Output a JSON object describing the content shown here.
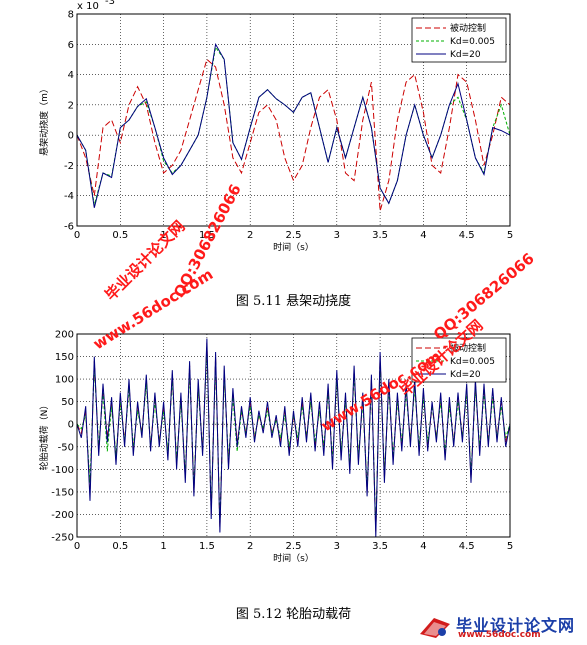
{
  "chart_data": [
    {
      "type": "line",
      "exponent_label": "x 10",
      "exponent_power": "-3",
      "xlabel": "时间（s）",
      "ylabel": "悬架动挠度（m）",
      "xlim": [
        0,
        5
      ],
      "ylim": [
        -6,
        8
      ],
      "xticks": [
        "0",
        "0.5",
        "1",
        "1.5",
        "2",
        "2.5",
        "3",
        "3.5",
        "4",
        "4.5",
        "5"
      ],
      "yticks": [
        "-6",
        "-4",
        "-2",
        "0",
        "2",
        "4",
        "6",
        "8"
      ],
      "grid": true,
      "legend_position": "top-right",
      "series": [
        {
          "name": "被动控制",
          "color": "#cc0000",
          "style": "dashed",
          "x": [
            0,
            0.1,
            0.2,
            0.3,
            0.4,
            0.5,
            0.6,
            0.7,
            0.8,
            0.9,
            1.0,
            1.1,
            1.2,
            1.3,
            1.4,
            1.5,
            1.6,
            1.7,
            1.8,
            1.9,
            2.0,
            2.1,
            2.2,
            2.3,
            2.4,
            2.5,
            2.6,
            2.7,
            2.8,
            2.9,
            3.0,
            3.1,
            3.2,
            3.3,
            3.4,
            3.5,
            3.6,
            3.7,
            3.8,
            3.9,
            4.0,
            4.1,
            4.2,
            4.3,
            4.4,
            4.5,
            4.6,
            4.7,
            4.8,
            4.9,
            5.0
          ],
          "y": [
            0,
            -1.5,
            -4.0,
            0.5,
            1.0,
            -0.5,
            2.0,
            3.2,
            2.0,
            -0.5,
            -2.5,
            -2.0,
            -1.0,
            1.0,
            3.0,
            5.0,
            4.5,
            2.0,
            -1.5,
            -2.5,
            -0.5,
            1.5,
            2.0,
            1.0,
            -1.5,
            -3.0,
            -2.0,
            0.5,
            2.5,
            3.0,
            1.0,
            -2.5,
            -3.0,
            1.0,
            3.5,
            -5.0,
            -3.0,
            1.0,
            3.5,
            4.0,
            1.5,
            -2.0,
            -2.5,
            0.5,
            4.0,
            3.5,
            1.0,
            -2.0,
            0.0,
            2.5,
            2.0
          ]
        },
        {
          "name": "Kd=0.005",
          "color": "#00b000",
          "style": "dashed",
          "x": [
            0,
            0.1,
            0.2,
            0.3,
            0.4,
            0.5,
            0.6,
            0.7,
            0.8,
            0.9,
            1.0,
            1.1,
            1.2,
            1.3,
            1.4,
            1.5,
            1.6,
            1.7,
            1.8,
            1.9,
            2.0,
            2.1,
            2.2,
            2.3,
            2.4,
            2.5,
            2.6,
            2.7,
            2.8,
            2.9,
            3.0,
            3.1,
            3.2,
            3.3,
            3.4,
            3.5,
            3.6,
            3.7,
            3.8,
            3.9,
            4.0,
            4.1,
            4.2,
            4.3,
            4.4,
            4.5,
            4.6,
            4.7,
            4.8,
            4.9,
            5.0
          ],
          "y": [
            0,
            -1.0,
            -4.6,
            -2.5,
            -2.7,
            0.5,
            1.0,
            1.9,
            2.2,
            0.5,
            -1.7,
            -2.5,
            -2.0,
            -1.0,
            0.0,
            2.5,
            5.8,
            5.0,
            -0.5,
            -1.6,
            0.5,
            2.5,
            3.0,
            2.4,
            2.0,
            1.5,
            2.5,
            2.8,
            0.5,
            -1.8,
            0.5,
            -1.5,
            0.5,
            2.5,
            0.5,
            -3.5,
            -4.5,
            -3.0,
            0.0,
            2.0,
            0.0,
            -1.5,
            0.0,
            2.0,
            2.5,
            1.0,
            -1.5,
            -2.5,
            0.5,
            2.0,
            0.0
          ]
        },
        {
          "name": "Kd=20",
          "color": "#000080",
          "style": "solid",
          "x": [
            0,
            0.1,
            0.2,
            0.3,
            0.4,
            0.5,
            0.6,
            0.7,
            0.8,
            0.9,
            1.0,
            1.1,
            1.2,
            1.3,
            1.4,
            1.5,
            1.6,
            1.7,
            1.8,
            1.9,
            2.0,
            2.1,
            2.2,
            2.3,
            2.4,
            2.5,
            2.6,
            2.7,
            2.8,
            2.9,
            3.0,
            3.1,
            3.2,
            3.3,
            3.4,
            3.5,
            3.6,
            3.7,
            3.8,
            3.9,
            4.0,
            4.1,
            4.2,
            4.3,
            4.4,
            4.5,
            4.6,
            4.7,
            4.8,
            4.9,
            5.0
          ],
          "y": [
            0,
            -1.0,
            -4.8,
            -2.5,
            -2.8,
            0.5,
            1.0,
            1.9,
            2.4,
            0.5,
            -1.5,
            -2.6,
            -2.0,
            -1.0,
            0.0,
            2.5,
            6.0,
            5.0,
            -0.5,
            -1.6,
            0.5,
            2.5,
            3.0,
            2.4,
            2.0,
            1.5,
            2.5,
            2.8,
            0.5,
            -1.8,
            0.5,
            -1.5,
            0.5,
            2.5,
            0.5,
            -3.5,
            -4.5,
            -3.0,
            0.0,
            2.0,
            0.0,
            -1.5,
            0.0,
            2.0,
            3.4,
            1.0,
            -1.5,
            -2.6,
            0.5,
            0.3,
            0.0
          ]
        }
      ]
    },
    {
      "type": "line",
      "xlabel": "时间（s）",
      "ylabel": "轮胎动载荷（N）",
      "xlim": [
        0,
        5
      ],
      "ylim": [
        -250,
        200
      ],
      "xticks": [
        "0",
        "0.5",
        "1",
        "1.5",
        "2",
        "2.5",
        "3",
        "3.5",
        "4",
        "4.5",
        "5"
      ],
      "yticks": [
        "-250",
        "-200",
        "-150",
        "-100",
        "-50",
        "0",
        "50",
        "100",
        "150",
        "200"
      ],
      "grid": true,
      "legend_position": "top-right",
      "series": [
        {
          "name": "被动控制",
          "color": "#cc0000",
          "style": "dashed",
          "x": [
            0,
            0.05,
            0.1,
            0.15,
            0.2,
            0.25,
            0.3,
            0.35,
            0.4,
            0.45,
            0.5,
            0.55,
            0.6,
            0.65,
            0.7,
            0.75,
            0.8,
            0.85,
            0.9,
            0.95,
            1.0,
            1.05,
            1.1,
            1.15,
            1.2,
            1.25,
            1.3,
            1.35,
            1.4,
            1.45,
            1.5,
            1.55,
            1.6,
            1.65,
            1.7,
            1.75,
            1.8,
            1.85,
            1.9,
            1.95,
            2.0,
            2.05,
            2.1,
            2.15,
            2.2,
            2.25,
            2.3,
            2.35,
            2.4,
            2.45,
            2.5,
            2.55,
            2.6,
            2.65,
            2.7,
            2.75,
            2.8,
            2.85,
            2.9,
            2.95,
            3.0,
            3.05,
            3.1,
            3.15,
            3.2,
            3.25,
            3.3,
            3.35,
            3.4,
            3.45,
            3.5,
            3.55,
            3.6,
            3.65,
            3.7,
            3.75,
            3.8,
            3.85,
            3.9,
            3.95,
            4.0,
            4.05,
            4.1,
            4.15,
            4.2,
            4.25,
            4.3,
            4.35,
            4.4,
            4.45,
            4.5,
            4.55,
            4.6,
            4.65,
            4.7,
            4.75,
            4.8,
            4.85,
            4.9,
            4.95,
            5.0
          ],
          "y": [
            0,
            -20,
            30,
            -150,
            140,
            -60,
            80,
            -30,
            50,
            -80,
            60,
            -40,
            90,
            -60,
            40,
            -20,
            100,
            -50,
            60,
            -40,
            40,
            -70,
            110,
            -90,
            60,
            -120,
            130,
            -150,
            90,
            -60,
            180,
            -200,
            150,
            -230,
            120,
            -90,
            70,
            -40,
            30,
            -20,
            50,
            -30,
            20,
            -10,
            40,
            -20,
            10,
            -40,
            30,
            -60,
            20,
            -40,
            50,
            -30,
            60,
            -50,
            40,
            -60,
            80,
            -90,
            110,
            -70,
            60,
            -100,
            120,
            -80,
            60,
            -150,
            100,
            -240,
            150,
            -120,
            90,
            -80,
            60,
            -50,
            80,
            -40,
            90,
            -60,
            70,
            -50,
            40,
            -30,
            60,
            -70,
            50,
            -40,
            60,
            -30,
            80,
            -120,
            90,
            -60,
            80,
            -40,
            70,
            -30,
            50,
            -40,
            0
          ]
        },
        {
          "name": "Kd=0.005",
          "color": "#00b000",
          "style": "dashed",
          "x": [
            0,
            0.05,
            0.1,
            0.15,
            0.2,
            0.25,
            0.3,
            0.35,
            0.4,
            0.45,
            0.5,
            0.55,
            0.6,
            0.65,
            0.7,
            0.75,
            0.8,
            0.85,
            0.9,
            0.95,
            1.0,
            1.05,
            1.1,
            1.15,
            1.2,
            1.25,
            1.3,
            1.35,
            1.4,
            1.45,
            1.5,
            1.55,
            1.6,
            1.65,
            1.7,
            1.75,
            1.8,
            1.85,
            1.9,
            1.95,
            2.0,
            2.05,
            2.1,
            2.15,
            2.2,
            2.25,
            2.3,
            2.35,
            2.4,
            2.45,
            2.5,
            2.55,
            2.6,
            2.65,
            2.7,
            2.75,
            2.8,
            2.85,
            2.9,
            2.95,
            3.0,
            3.05,
            3.1,
            3.15,
            3.2,
            3.25,
            3.3,
            3.35,
            3.4,
            3.45,
            3.5,
            3.55,
            3.6,
            3.65,
            3.7,
            3.75,
            3.8,
            3.85,
            3.9,
            3.95,
            4.0,
            4.05,
            4.1,
            4.15,
            4.2,
            4.25,
            4.3,
            4.35,
            4.4,
            4.45,
            4.5,
            4.55,
            4.6,
            4.65,
            4.7,
            4.75,
            4.8,
            4.85,
            4.9,
            4.95,
            5.0
          ],
          "y": [
            0,
            -10,
            20,
            -130,
            130,
            -50,
            70,
            -60,
            40,
            -70,
            50,
            -40,
            80,
            -50,
            30,
            -20,
            90,
            -50,
            50,
            -40,
            30,
            -60,
            100,
            -80,
            50,
            -110,
            120,
            -140,
            80,
            -60,
            170,
            -190,
            140,
            -220,
            110,
            -80,
            60,
            -60,
            30,
            -20,
            40,
            -30,
            20,
            -10,
            30,
            -20,
            10,
            -30,
            20,
            -50,
            20,
            -30,
            40,
            -30,
            50,
            -40,
            30,
            -50,
            70,
            -80,
            100,
            -60,
            50,
            -90,
            110,
            -70,
            50,
            -140,
            90,
            -230,
            140,
            -110,
            80,
            -70,
            50,
            -40,
            70,
            -40,
            80,
            -50,
            60,
            -40,
            40,
            -30,
            50,
            -60,
            40,
            -40,
            50,
            -30,
            70,
            -110,
            80,
            -50,
            70,
            -40,
            60,
            -30,
            40,
            -30,
            0
          ]
        },
        {
          "name": "Kd=20",
          "color": "#000080",
          "style": "solid",
          "x": [
            0,
            0.05,
            0.1,
            0.15,
            0.2,
            0.25,
            0.3,
            0.35,
            0.4,
            0.45,
            0.5,
            0.55,
            0.6,
            0.65,
            0.7,
            0.75,
            0.8,
            0.85,
            0.9,
            0.95,
            1.0,
            1.05,
            1.1,
            1.15,
            1.2,
            1.25,
            1.3,
            1.35,
            1.4,
            1.45,
            1.5,
            1.55,
            1.6,
            1.65,
            1.7,
            1.75,
            1.8,
            1.85,
            1.9,
            1.95,
            2.0,
            2.05,
            2.1,
            2.15,
            2.2,
            2.25,
            2.3,
            2.35,
            2.4,
            2.45,
            2.5,
            2.55,
            2.6,
            2.65,
            2.7,
            2.75,
            2.8,
            2.85,
            2.9,
            2.95,
            3.0,
            3.05,
            3.1,
            3.15,
            3.2,
            3.25,
            3.3,
            3.35,
            3.4,
            3.45,
            3.5,
            3.55,
            3.6,
            3.65,
            3.7,
            3.75,
            3.8,
            3.85,
            3.9,
            3.95,
            4.0,
            4.05,
            4.1,
            4.15,
            4.2,
            4.25,
            4.3,
            4.35,
            4.4,
            4.45,
            4.5,
            4.55,
            4.6,
            4.65,
            4.7,
            4.75,
            4.8,
            4.85,
            4.9,
            4.95,
            5.0
          ],
          "y": [
            0,
            -30,
            40,
            -170,
            150,
            -70,
            90,
            -40,
            60,
            -90,
            70,
            -50,
            100,
            -70,
            50,
            -30,
            110,
            -60,
            70,
            -50,
            50,
            -80,
            120,
            -100,
            70,
            -130,
            140,
            -160,
            100,
            -70,
            190,
            -210,
            160,
            -240,
            130,
            -100,
            80,
            -50,
            40,
            -30,
            60,
            -40,
            30,
            -20,
            50,
            -30,
            20,
            -50,
            40,
            -70,
            30,
            -50,
            60,
            -40,
            70,
            -60,
            50,
            -70,
            90,
            -100,
            120,
            -80,
            70,
            -110,
            130,
            -90,
            70,
            -160,
            110,
            -250,
            160,
            -130,
            100,
            -90,
            70,
            -60,
            90,
            -50,
            100,
            -70,
            80,
            -60,
            50,
            -40,
            70,
            -80,
            60,
            -50,
            70,
            -40,
            90,
            -130,
            100,
            -70,
            90,
            -50,
            80,
            -40,
            60,
            -50,
            0
          ]
        }
      ]
    }
  ],
  "captions": {
    "fig1": "图 5.11    悬架动挠度",
    "fig2": "图 5.12    轮胎动载荷"
  },
  "watermarks": {
    "site1": "www.56doc.com",
    "qq1": "QQ:306826066",
    "name1": "毕业设计论文网",
    "site2": "www.56doc.com",
    "qq2": "QQ:306826066",
    "name2": "毕业设计论文网"
  },
  "logo": {
    "title": "毕业设计论文网",
    "url": "www.56doc.com"
  }
}
